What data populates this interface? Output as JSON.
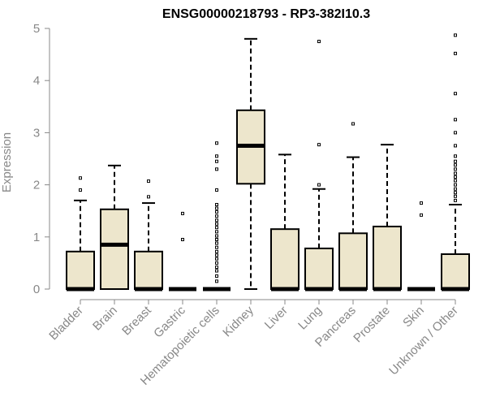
{
  "chart_data": {
    "type": "box",
    "title": "ENSG00000218793 - RP3-382I10.3",
    "ylabel": "Expression",
    "xlabel": "",
    "ylim": [
      0,
      5
    ],
    "yticks": [
      0,
      1,
      2,
      3,
      4,
      5
    ],
    "box_fill": "#ede6cc",
    "line_color": "#000000",
    "axis_color": "#888888",
    "categories": [
      "Bladder",
      "Brain",
      "Breast",
      "Gastric",
      "Hematopoietic cells",
      "Kidney",
      "Liver",
      "Lung",
      "Pancreas",
      "Prostate",
      "Skin",
      "Unknown / Other"
    ],
    "boxes": [
      {
        "q1": 0,
        "median": 0,
        "q3": 0.72,
        "whisker_low": 0,
        "whisker_high": 1.7,
        "outliers": [
          1.9,
          2.13
        ]
      },
      {
        "q1": 0,
        "median": 0.85,
        "q3": 1.53,
        "whisker_low": 0,
        "whisker_high": 2.37,
        "outliers": []
      },
      {
        "q1": 0,
        "median": 0,
        "q3": 0.72,
        "whisker_low": 0,
        "whisker_high": 1.65,
        "outliers": [
          1.77,
          2.07
        ]
      },
      {
        "q1": 0,
        "median": 0,
        "q3": 0,
        "whisker_low": 0,
        "whisker_high": 0,
        "outliers": [
          0.95,
          1.45
        ]
      },
      {
        "q1": 0,
        "median": 0,
        "q3": 0,
        "whisker_low": 0,
        "whisker_high": 0,
        "outliers": [
          0.15,
          0.25,
          0.35,
          0.42,
          0.5,
          0.58,
          0.65,
          0.72,
          0.8,
          0.88,
          0.95,
          1.02,
          1.1,
          1.18,
          1.25,
          1.32,
          1.4,
          1.48,
          1.55,
          1.62,
          1.9,
          2.3,
          2.45,
          2.55,
          2.8
        ]
      },
      {
        "q1": 2.02,
        "median": 2.75,
        "q3": 3.43,
        "whisker_low": 0,
        "whisker_high": 4.8,
        "outliers": []
      },
      {
        "q1": 0,
        "median": 0,
        "q3": 1.15,
        "whisker_low": 0,
        "whisker_high": 2.58,
        "outliers": []
      },
      {
        "q1": 0,
        "median": 0,
        "q3": 0.78,
        "whisker_low": 0,
        "whisker_high": 1.92,
        "outliers": [
          2.0,
          2.77,
          4.75
        ]
      },
      {
        "q1": 0,
        "median": 0,
        "q3": 1.07,
        "whisker_low": 0,
        "whisker_high": 2.53,
        "outliers": [
          3.17
        ]
      },
      {
        "q1": 0,
        "median": 0,
        "q3": 1.2,
        "whisker_low": 0,
        "whisker_high": 2.77,
        "outliers": []
      },
      {
        "q1": 0,
        "median": 0,
        "q3": 0,
        "whisker_low": 0,
        "whisker_high": 0,
        "outliers": [
          1.42,
          1.65
        ]
      },
      {
        "q1": 0,
        "median": 0,
        "q3": 0.67,
        "whisker_low": 0,
        "whisker_high": 1.62,
        "outliers": [
          1.7,
          1.78,
          1.85,
          1.92,
          2.0,
          2.08,
          2.15,
          2.22,
          2.3,
          2.38,
          2.45,
          2.55,
          2.75,
          3.0,
          3.25,
          3.75,
          4.52,
          4.87
        ]
      }
    ]
  }
}
